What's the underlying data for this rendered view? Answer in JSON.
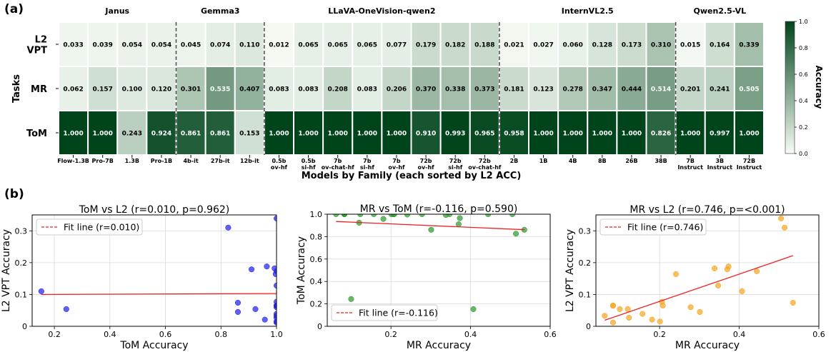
{
  "figure": {
    "panel_a_label": "(a)",
    "panel_b_label": "(b)"
  },
  "chart_data": [
    {
      "type": "heatmap",
      "title": "",
      "xlabel": "Models by Family (each sorted by L2 ACC)",
      "ylabel": "Tasks",
      "rows": [
        "L2 VPT",
        "MR",
        "ToM"
      ],
      "row_labels": [
        [
          "L2",
          "VPT"
        ],
        [
          "MR"
        ],
        [
          "ToM"
        ]
      ],
      "families": [
        {
          "name": "Janus",
          "count": 4
        },
        {
          "name": "Gemma3",
          "count": 3
        },
        {
          "name": "LLaVA-OneVision-qwen2",
          "count": 8
        },
        {
          "name": "InternVL2.5",
          "count": 6
        },
        {
          "name": "Qwen2.5-VL",
          "count": 3
        }
      ],
      "columns": [
        [
          "Flow-1.3B"
        ],
        [
          "Pro-7B"
        ],
        [
          "1.3B"
        ],
        [
          "Pro-1B"
        ],
        [
          "4b-it"
        ],
        [
          "27b-it"
        ],
        [
          "12b-it"
        ],
        [
          "0.5b",
          "ov-hf"
        ],
        [
          "0.5b",
          "si-hf"
        ],
        [
          "7b",
          "ov-chat-hf"
        ],
        [
          "7b",
          "si-hf"
        ],
        [
          "7b",
          "ov-hf"
        ],
        [
          "72b",
          "ov-hf"
        ],
        [
          "72b",
          "si-hf"
        ],
        [
          "72b",
          "ov-chat-hf"
        ],
        [
          "2B"
        ],
        [
          "1B"
        ],
        [
          "4B"
        ],
        [
          "8B"
        ],
        [
          "26B"
        ],
        [
          "38B"
        ],
        [
          "7B",
          "Instruct"
        ],
        [
          "3B",
          "Instruct"
        ],
        [
          "72B",
          "Instruct"
        ]
      ],
      "values": [
        [
          0.033,
          0.039,
          0.054,
          0.054,
          0.045,
          0.074,
          0.11,
          0.012,
          0.065,
          0.065,
          0.065,
          0.077,
          0.179,
          0.182,
          0.188,
          0.021,
          0.027,
          0.06,
          0.128,
          0.173,
          0.31,
          0.015,
          0.164,
          0.339
        ],
        [
          0.062,
          0.157,
          0.1,
          0.12,
          0.301,
          0.535,
          0.407,
          0.083,
          0.083,
          0.208,
          0.083,
          0.206,
          0.37,
          0.338,
          0.373,
          0.181,
          0.123,
          0.278,
          0.347,
          0.444,
          0.514,
          0.201,
          0.241,
          0.505
        ],
        [
          1.0,
          1.0,
          0.243,
          0.924,
          0.861,
          0.861,
          0.153,
          1.0,
          1.0,
          1.0,
          1.0,
          1.0,
          0.91,
          0.993,
          0.965,
          0.958,
          1.0,
          1.0,
          1.0,
          1.0,
          0.826,
          1.0,
          0.997,
          1.0
        ]
      ],
      "colorbar": {
        "label": "Accuracy",
        "range": [
          0,
          1
        ],
        "ticks": [
          "0.0",
          "0.2",
          "0.4",
          "0.6",
          "0.8",
          "1.0"
        ]
      },
      "colors": {
        "low": "#f7fcf5",
        "high": "#00441b",
        "separator": "#555555"
      }
    },
    {
      "type": "scatter",
      "title": "ToM vs L2 (r=0.010, p=0.962)",
      "xlabel": "ToM Accuracy",
      "ylabel": "L2 VPT Accuracy",
      "xlim": [
        0.12,
        1.0
      ],
      "ylim": [
        0,
        0.35
      ],
      "xticks": [
        "0.2",
        "0.4",
        "0.6",
        "0.8",
        "1.0"
      ],
      "yticks": [
        "0",
        "0.1",
        "0.2",
        "0.3"
      ],
      "x_source": "ToM",
      "y_source": "L2 VPT",
      "point_color": "#2222ee",
      "fit": {
        "label": "Fit line (r=0.010)",
        "x": [
          0.153,
          1.0
        ],
        "y": [
          0.1,
          0.103
        ],
        "color": "#ee2222"
      },
      "legend": "upper-left"
    },
    {
      "type": "scatter",
      "title": "MR vs ToM (r=-0.116, p=0.590)",
      "xlabel": "MR Accuracy",
      "ylabel": "ToM Accuracy",
      "xlim": [
        0.04,
        0.6
      ],
      "ylim": [
        0,
        1.0
      ],
      "xticks": [
        "0.2",
        "0.4",
        "0.6"
      ],
      "yticks": [
        "0",
        "0.2",
        "0.4",
        "0.6",
        "0.8",
        "1.0"
      ],
      "x_source": "MR",
      "y_source": "ToM",
      "point_color": "#2e9a2e",
      "fit": {
        "label": "Fit line (r=-0.116)",
        "x": [
          0.062,
          0.535
        ],
        "y": [
          0.935,
          0.862
        ],
        "color": "#ee2222"
      },
      "legend": "lower-left"
    },
    {
      "type": "scatter",
      "title": "MR vs L2 (r=0.746, p=<0.001)",
      "xlabel": "MR Accuracy",
      "ylabel": "L2 VPT Accuracy",
      "xlim": [
        0.04,
        0.6
      ],
      "ylim": [
        0,
        0.35
      ],
      "xticks": [
        "0.2",
        "0.4",
        "0.6"
      ],
      "yticks": [
        "0",
        "0.1",
        "0.2",
        "0.3"
      ],
      "x_source": "MR",
      "y_source": "L2 VPT",
      "point_color": "#f5a623",
      "fit": {
        "label": "Fit line (r=0.746)",
        "x": [
          0.062,
          0.535
        ],
        "y": [
          0.019,
          0.222
        ],
        "color": "#ee2222"
      },
      "legend": "upper-left"
    }
  ]
}
